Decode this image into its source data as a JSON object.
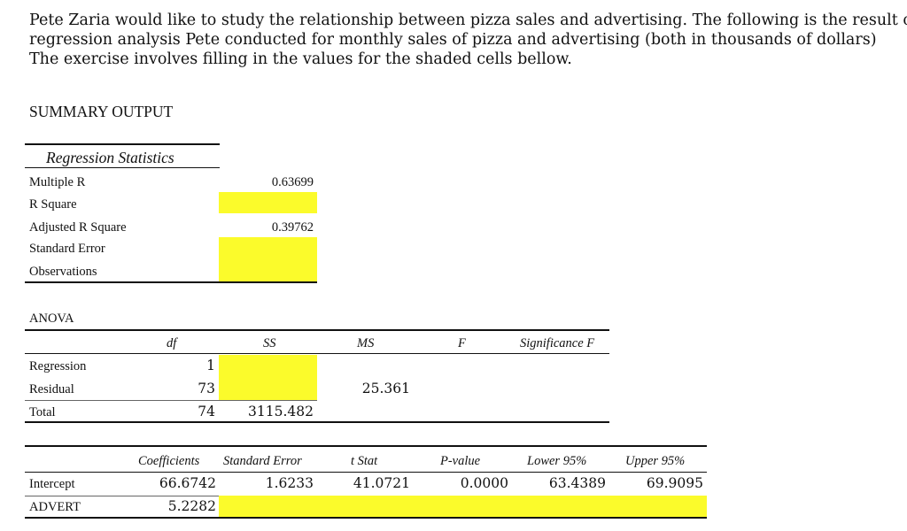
{
  "intro": {
    "line1": "Pete Zaria would like to study the relationship between pizza sales and advertising.  The following is the result of a",
    "line2": "regression analysis Pete conducted for monthly sales of pizza and advertising (both in thousands of dollars)",
    "line3": "The exercise involves filling in the values for the shaded cells bellow."
  },
  "summary_title": "SUMMARY OUTPUT",
  "regression_statistics": {
    "header": "Regression Statistics",
    "rows": [
      {
        "label": "Multiple R",
        "value": "0.63699"
      },
      {
        "label": "R Square",
        "value": ""
      },
      {
        "label": "Adjusted R Square",
        "value": "0.39762"
      },
      {
        "label": "Standard Error",
        "value": ""
      },
      {
        "label": "Observations",
        "value": ""
      }
    ]
  },
  "anova": {
    "title": "ANOVA",
    "headers": [
      "df",
      "SS",
      "MS",
      "F",
      "Significance F"
    ],
    "rows": [
      {
        "label": "Regression",
        "df": "1",
        "ss": "",
        "ms": "",
        "f": "",
        "sig": ""
      },
      {
        "label": "Residual",
        "df": "73",
        "ss": "",
        "ms": "25.361",
        "f": "",
        "sig": ""
      },
      {
        "label": "Total",
        "df": "74",
        "ss": "3115.482",
        "ms": "",
        "f": "",
        "sig": ""
      }
    ]
  },
  "coefficients": {
    "headers": [
      "Coefficients",
      "Standard Error",
      "t Stat",
      "P-value",
      "Lower 95%",
      "Upper 95%"
    ],
    "rows": [
      {
        "label": "Intercept",
        "coef": "66.6742",
        "se": "1.6233",
        "t": "41.0721",
        "p": "0.0000",
        "lower": "63.4389",
        "upper": "69.9095"
      },
      {
        "label": "ADVERT",
        "coef": "5.2282",
        "se": "",
        "t": "",
        "p": "",
        "lower": "",
        "upper": ""
      }
    ]
  },
  "colors": {
    "shade": "#fbfb2b",
    "rule": "#111111"
  }
}
